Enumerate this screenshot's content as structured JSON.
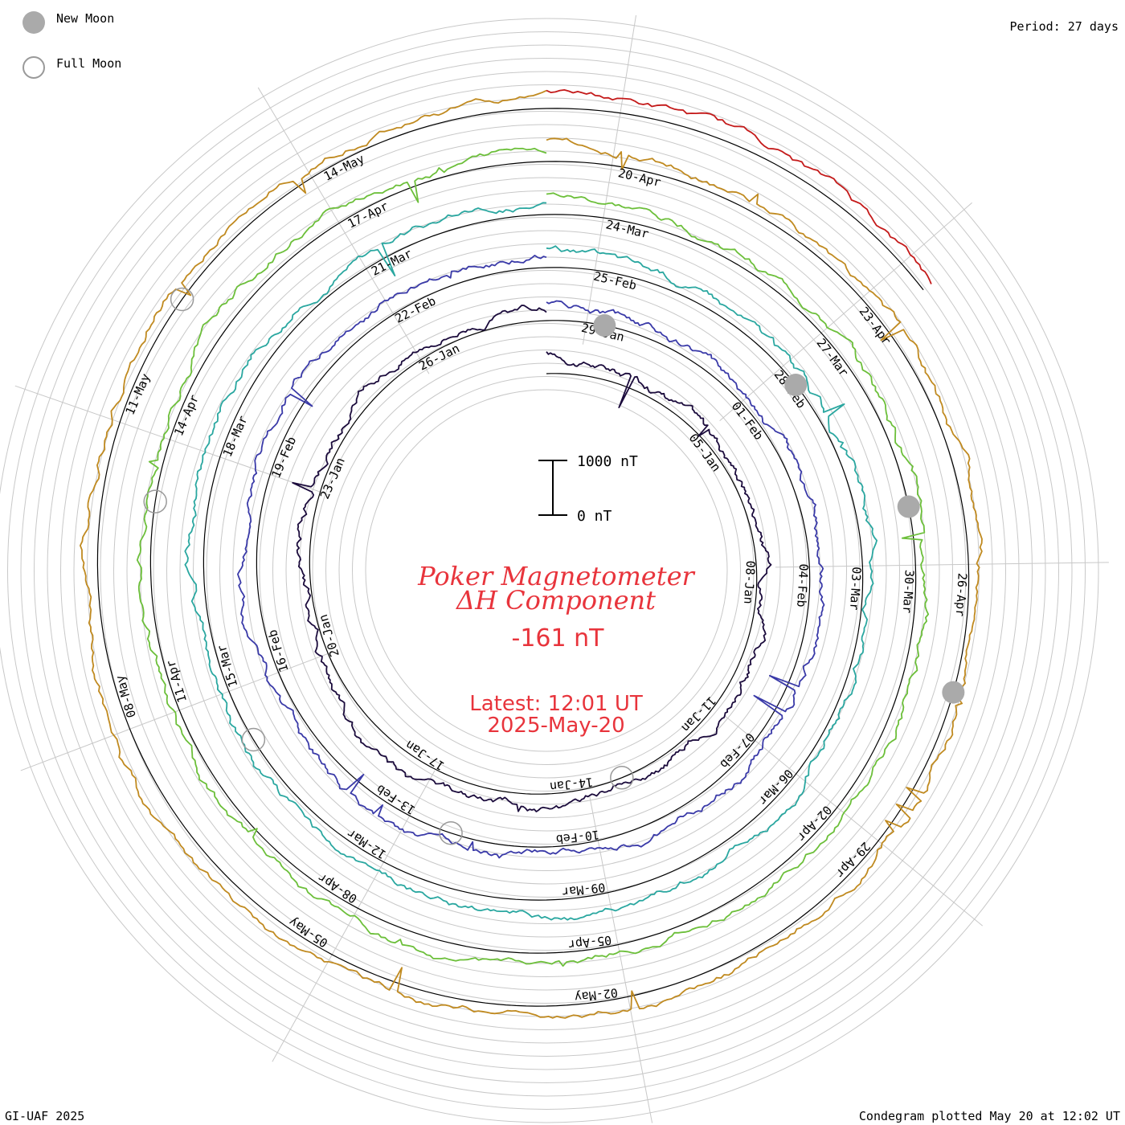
{
  "legend": {
    "new_moon_label": "New Moon",
    "full_moon_label": "Full Moon"
  },
  "period_label": "Period: 27 days",
  "footer_left": "GI-UAF 2025",
  "footer_right": "Condegram plotted May 20 at 12:02 UT",
  "colors": {
    "accent": "#e8343c",
    "new_moon_fill": "#aaaaaa",
    "full_moon_stroke": "#999999",
    "ring_grid": "#c8c8c8"
  },
  "chart_data": {
    "type": "line",
    "subtype": "condegram-spiral",
    "title_line1": "Poker Magnetometer",
    "title_line2": "ΔH Component",
    "current_value": "-161 nT",
    "latest_line1": "Latest: 12:01 UT",
    "latest_line2": "2025-May-20",
    "scale_bar": {
      "top_label": "1000 nT",
      "bottom_label": "0 nT",
      "span_nT": 1000
    },
    "period_days": 27,
    "grid": true,
    "series": [
      {
        "cycle": 1,
        "start": "2025-01-01",
        "end": "2025-01-28",
        "color": "#1b0b3c",
        "labels": [
          "05-Jan",
          "08-Jan",
          "11-Jan",
          "14-Jan",
          "17-Jan",
          "20-Jan",
          "23-Jan",
          "26-Jan",
          "29-Jan"
        ]
      },
      {
        "cycle": 2,
        "start": "2025-01-28",
        "end": "2025-02-24",
        "color": "#3a3aa8",
        "labels": [
          "01-Feb",
          "04-Feb",
          "07-Feb",
          "10-Feb",
          "13-Feb",
          "16-Feb",
          "19-Feb",
          "22-Feb",
          "25-Feb"
        ]
      },
      {
        "cycle": 3,
        "start": "2025-02-24",
        "end": "2025-03-23",
        "color": "#2aa7a0",
        "labels": [
          "28-Feb",
          "03-Mar",
          "06-Mar",
          "09-Mar",
          "12-Mar",
          "15-Mar",
          "18-Mar",
          "21-Mar",
          "24-Mar"
        ]
      },
      {
        "cycle": 4,
        "start": "2025-03-23",
        "end": "2025-04-19",
        "color": "#6cbf3a",
        "labels": [
          "27-Mar",
          "30-Mar",
          "02-Apr",
          "05-Apr",
          "08-Apr",
          "11-Apr",
          "14-Apr",
          "17-Apr",
          "20-Apr"
        ]
      },
      {
        "cycle": 5,
        "start": "2025-04-19",
        "end": "2025-05-16",
        "color": "#c08a20",
        "labels": [
          "23-Apr",
          "26-Apr",
          "29-Apr",
          "02-May",
          "05-May",
          "08-May",
          "11-May",
          "14-May"
        ]
      },
      {
        "cycle": 6,
        "start": "2025-05-16",
        "end": "2025-05-20",
        "color": "#c41a1a",
        "labels": []
      }
    ],
    "new_moons": [
      "2025-01-29",
      "2025-02-28",
      "2025-03-29",
      "2025-04-27"
    ],
    "full_moons": [
      "2025-01-13",
      "2025-02-12",
      "2025-03-14",
      "2025-04-13",
      "2025-05-12"
    ]
  }
}
